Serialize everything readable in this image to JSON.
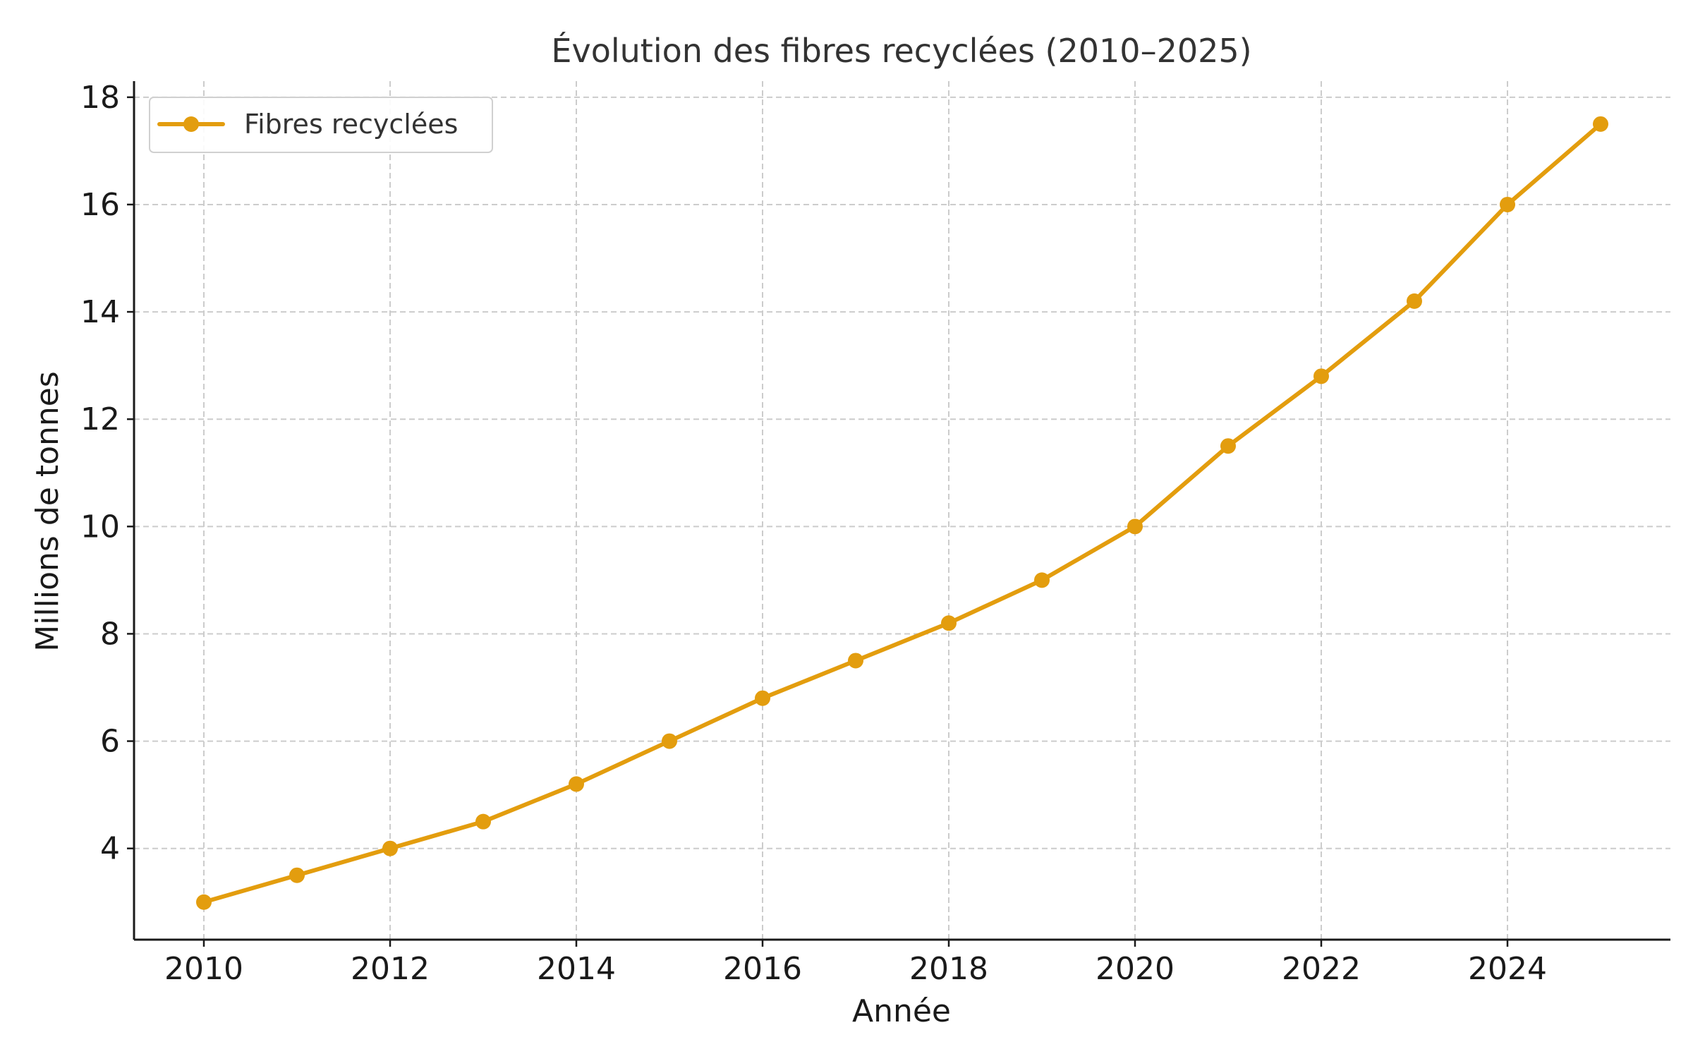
{
  "chart_data": {
    "type": "line",
    "title": "Évolution des fibres recyclées (2010–2025)",
    "xlabel": "Année",
    "ylabel": "Millions de tonnes",
    "x": [
      2010,
      2011,
      2012,
      2013,
      2014,
      2015,
      2016,
      2017,
      2018,
      2019,
      2020,
      2021,
      2022,
      2023,
      2024,
      2025
    ],
    "series": [
      {
        "name": "Fibres recyclées",
        "color": "#e39d0e",
        "marker": "circle",
        "values": [
          3.0,
          3.5,
          4.0,
          4.5,
          5.2,
          6.0,
          6.8,
          7.5,
          8.2,
          9.0,
          10.0,
          11.5,
          12.8,
          14.2,
          16.0,
          17.5
        ]
      }
    ],
    "xlim": [
      2009.25,
      2025.75
    ],
    "ylim": [
      2.3,
      18.3
    ],
    "xticks": [
      2010,
      2012,
      2014,
      2016,
      2018,
      2020,
      2022,
      2024
    ],
    "yticks": [
      4,
      6,
      8,
      10,
      12,
      14,
      16,
      18
    ],
    "grid": true,
    "legend_position": "top-left"
  }
}
